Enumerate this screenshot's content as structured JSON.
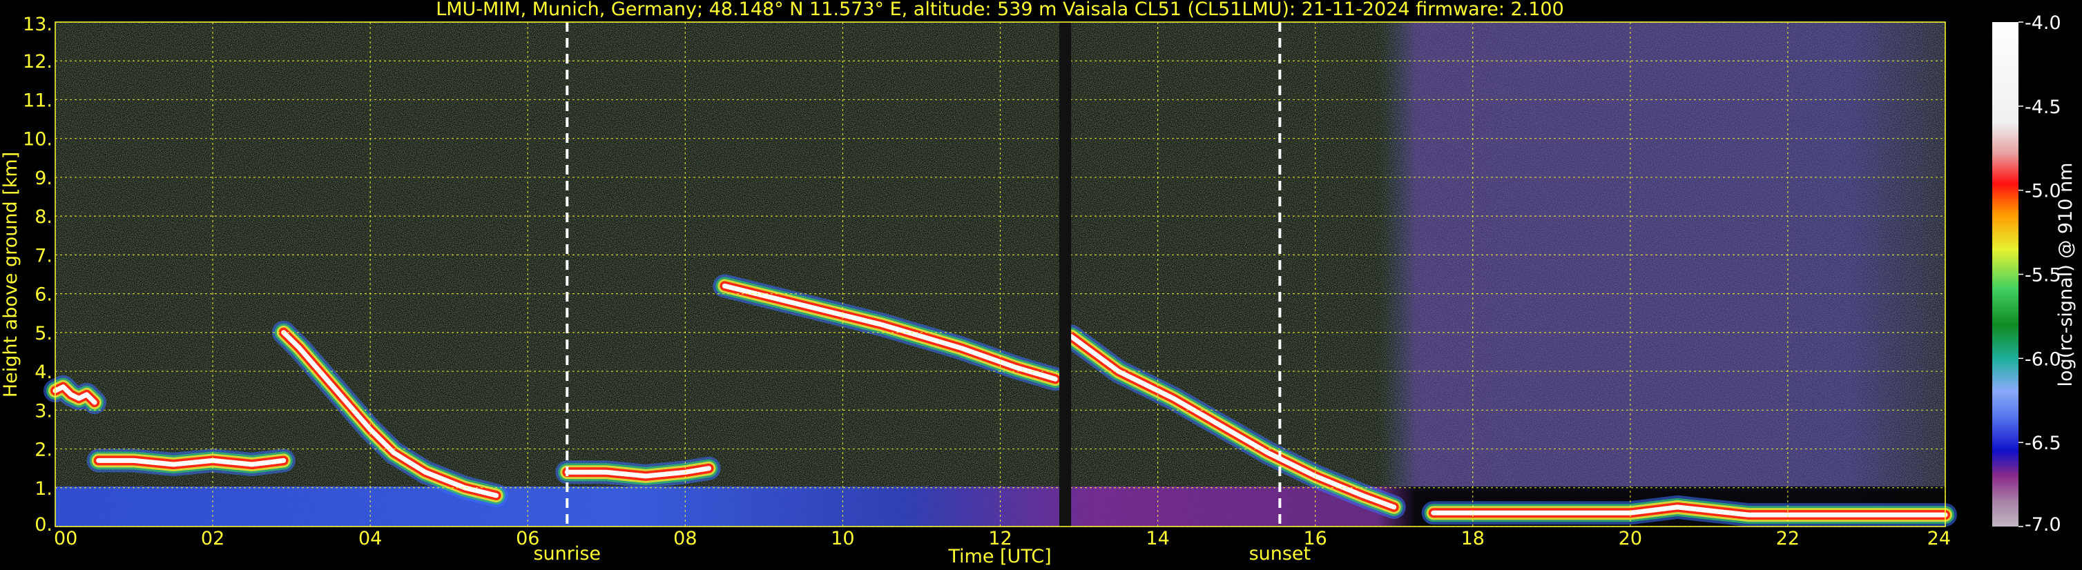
{
  "chart_data": {
    "type": "heatmap",
    "title": "LMU-MIM, Munich, Germany; 48.148° N 11.573° E, altitude: 539 m    Vaisala CL51 (CL51LMU): 21-11-2024    firmware: 2.100",
    "xlabel": "Time [UTC]",
    "ylabel": "Height above ground [km]",
    "xlim": [
      0,
      24
    ],
    "ylim": [
      0,
      13
    ],
    "x_ticks": [
      "00",
      "02",
      "04",
      "06",
      "08",
      "10",
      "12",
      "14",
      "16",
      "18",
      "20",
      "22",
      "24"
    ],
    "y_ticks": [
      "0.",
      "1.",
      "2.",
      "3.",
      "4.",
      "5.",
      "6.",
      "7.",
      "8.",
      "9.",
      "10.",
      "11.",
      "12.",
      "13."
    ],
    "grid": true,
    "annotations": [
      {
        "label": "sunrise",
        "x": 6.5
      },
      {
        "label": "sunset",
        "x": 15.55
      }
    ],
    "colorbar": {
      "label": "log(rc-signal) @ 910 nm",
      "range": [
        -7.0,
        -4.0
      ],
      "ticks": [
        "-4.0",
        "-4.5",
        "-5.0",
        "-5.5",
        "-6.0",
        "-6.5",
        "-7.0"
      ]
    },
    "features": {
      "data_gap": [
        12.75,
        12.9
      ],
      "cloud_layers": [
        {
          "x": [
            0.0,
            0.1,
            0.2,
            0.3,
            0.4,
            0.5
          ],
          "y": [
            3.5,
            3.6,
            3.4,
            3.3,
            3.4,
            3.2
          ]
        },
        {
          "x": [
            0.55,
            1.0,
            1.5,
            2.0,
            2.5,
            2.9
          ],
          "y": [
            1.7,
            1.7,
            1.6,
            1.7,
            1.6,
            1.7
          ]
        },
        {
          "x": [
            2.9,
            3.1,
            3.4,
            3.7,
            4.0,
            4.3,
            4.7,
            5.2,
            5.6
          ],
          "y": [
            5.0,
            4.6,
            3.9,
            3.2,
            2.5,
            1.9,
            1.4,
            1.0,
            0.8
          ]
        },
        {
          "x": [
            6.5,
            7.0,
            7.5,
            8.0,
            8.3
          ],
          "y": [
            1.4,
            1.4,
            1.3,
            1.4,
            1.5
          ]
        },
        {
          "x": [
            8.5,
            9.5,
            10.5,
            11.5,
            12.2,
            12.7
          ],
          "y": [
            6.2,
            5.7,
            5.2,
            4.6,
            4.1,
            3.8
          ]
        },
        {
          "x": [
            12.9,
            13.5,
            14.2,
            14.8,
            15.4,
            16.0,
            16.6,
            17.0
          ],
          "y": [
            4.9,
            4.0,
            3.3,
            2.6,
            1.9,
            1.3,
            0.8,
            0.5
          ]
        },
        {
          "x": [
            17.5,
            19.0,
            20.0,
            20.6,
            21.5,
            23.0,
            24.0
          ],
          "y": [
            0.35,
            0.35,
            0.35,
            0.5,
            0.3,
            0.3,
            0.3
          ]
        }
      ]
    }
  }
}
